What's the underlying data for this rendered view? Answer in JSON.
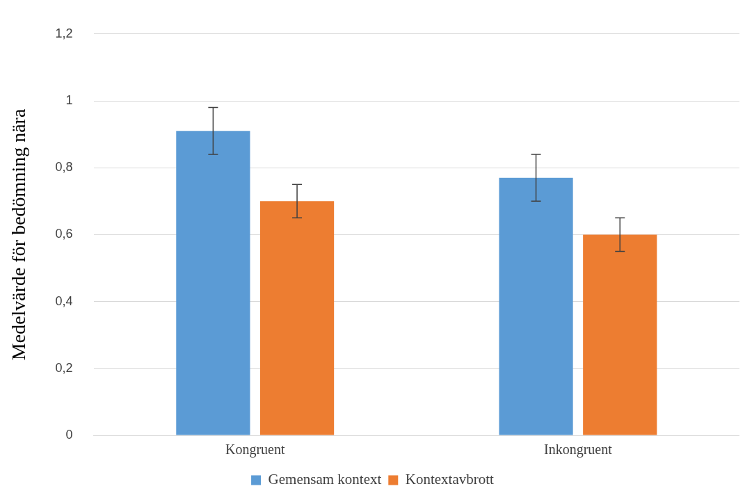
{
  "chart_data": {
    "type": "bar",
    "ylabel": "Medelvärde för bedömning nära",
    "categories": [
      "Kongruent",
      "Inkongruent"
    ],
    "series": [
      {
        "name": "Gemensam kontext",
        "color": "#5b9bd5",
        "values": [
          0.91,
          0.77
        ],
        "errors": [
          0.07,
          0.07
        ]
      },
      {
        "name": "Kontextavbrott",
        "color": "#ed7d31",
        "values": [
          0.7,
          0.6
        ],
        "errors": [
          0.05,
          0.05
        ]
      }
    ],
    "ylim": [
      0,
      1.2
    ],
    "yticks": [
      {
        "value": 0,
        "label": "0"
      },
      {
        "value": 0.2,
        "label": "0,2"
      },
      {
        "value": 0.4,
        "label": "0,4"
      },
      {
        "value": 0.6,
        "label": "0,6"
      },
      {
        "value": 0.8,
        "label": "0,8"
      },
      {
        "value": 1,
        "label": "1"
      },
      {
        "value": 1.2,
        "label": "1,2"
      }
    ],
    "grid": "y",
    "legend": "bottom"
  }
}
